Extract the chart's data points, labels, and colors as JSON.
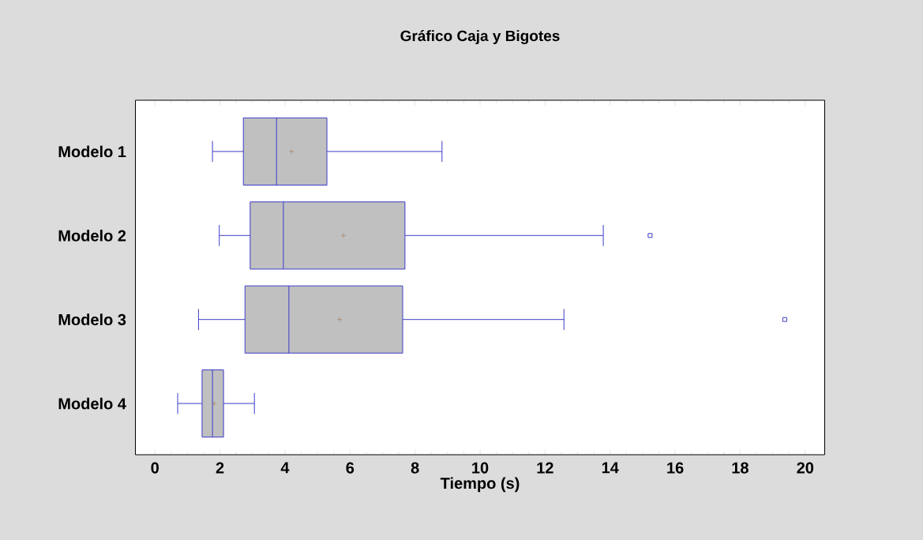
{
  "chart_data": {
    "type": "box",
    "title": "Gráfico Caja y Bigotes",
    "xlabel": "Tiempo (s)",
    "orientation": "horizontal",
    "color": "#c0c0c0",
    "categories": [
      "Modelo 1",
      "Modelo 2",
      "Modelo 3",
      "Modelo 4"
    ],
    "boxes": [
      {
        "low": 1.77,
        "q1": 2.72,
        "median": 3.74,
        "q3": 5.29,
        "high": 8.83,
        "mean": 4.2
      },
      {
        "low": 1.98,
        "q1": 2.93,
        "median": 3.95,
        "q3": 7.69,
        "high": 13.79,
        "mean": 5.8,
        "outliers": [
          15.23
        ]
      },
      {
        "low": 1.34,
        "q1": 2.77,
        "median": 4.12,
        "q3": 7.62,
        "high": 12.58,
        "mean": 5.68,
        "outliers": [
          19.37
        ]
      },
      {
        "low": 0.7,
        "q1": 1.45,
        "median": 1.77,
        "q3": 2.11,
        "high": 3.06,
        "mean": 1.82
      }
    ],
    "xlim": [
      -0.6,
      20.6
    ],
    "xticks": [
      0,
      2,
      4,
      6,
      8,
      10,
      12,
      14,
      16,
      18,
      20
    ]
  }
}
